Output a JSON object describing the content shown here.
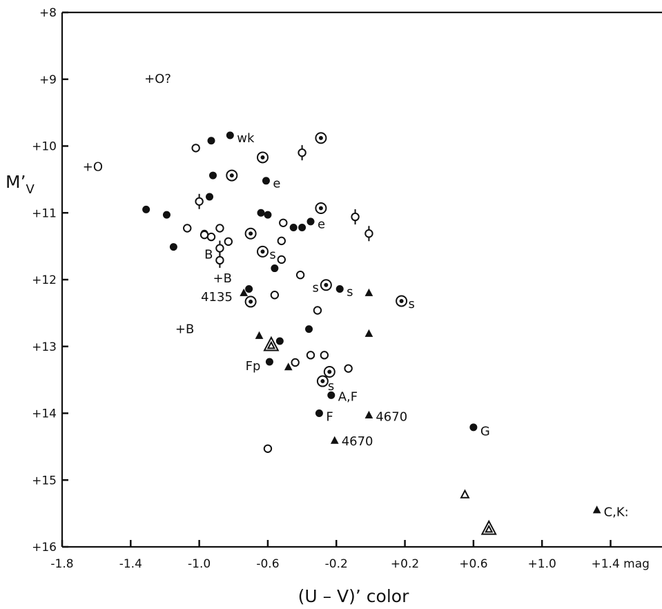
{
  "chart_data": {
    "type": "scatter",
    "title": "",
    "xlabel": "(U – V)’ color",
    "ylabel": "M’V",
    "ylabel_main": "M’",
    "ylabel_sub": "V",
    "xlim": [
      -1.8,
      1.7
    ],
    "ylim": [
      8,
      16
    ],
    "y_inverted": true,
    "grid": false,
    "x_ticks": [
      -1.8,
      -1.4,
      -1.0,
      -0.6,
      -0.2,
      0.2,
      0.6,
      1.0,
      1.4
    ],
    "x_tick_labels": [
      "-1.8",
      "-1.4",
      "-1.0",
      "-0.6",
      "-0.2",
      "+0.2",
      "+0.6",
      "+1.0",
      "+1.4 mag"
    ],
    "y_ticks": [
      8,
      9,
      10,
      11,
      12,
      13,
      14,
      15,
      16
    ],
    "y_tick_labels": [
      "+8",
      "+9",
      "+10",
      "+11",
      "+12",
      "+13",
      "+14",
      "+15",
      "+16"
    ],
    "marker_colors": {
      "ink": "#111111",
      "paper": "#ffffff"
    },
    "series": [
      {
        "marker": "filled-circle",
        "points": [
          {
            "x": -0.82,
            "y": 9.84
          },
          {
            "x": -0.93,
            "y": 9.92
          },
          {
            "x": -0.92,
            "y": 10.44
          },
          {
            "x": -0.61,
            "y": 10.52
          },
          {
            "x": -0.94,
            "y": 10.76
          },
          {
            "x": -1.31,
            "y": 10.95
          },
          {
            "x": -1.19,
            "y": 11.03
          },
          {
            "x": -0.64,
            "y": 11.0
          },
          {
            "x": -0.6,
            "y": 11.03
          },
          {
            "x": -0.35,
            "y": 11.13
          },
          {
            "x": -0.4,
            "y": 11.22
          },
          {
            "x": -0.45,
            "y": 11.22
          },
          {
            "x": -0.97,
            "y": 11.31
          },
          {
            "x": -1.15,
            "y": 11.51
          },
          {
            "x": -0.56,
            "y": 11.83
          },
          {
            "x": -0.71,
            "y": 12.14
          },
          {
            "x": -0.18,
            "y": 12.14
          },
          {
            "x": -0.36,
            "y": 12.74
          },
          {
            "x": -0.53,
            "y": 12.92
          },
          {
            "x": -0.59,
            "y": 13.23
          },
          {
            "x": -0.23,
            "y": 13.73
          },
          {
            "x": -0.3,
            "y": 14.0
          },
          {
            "x": 0.6,
            "y": 14.21
          }
        ]
      },
      {
        "marker": "open-circle",
        "points": [
          {
            "x": -1.02,
            "y": 10.03
          },
          {
            "x": -1.07,
            "y": 11.23
          },
          {
            "x": -0.97,
            "y": 11.33
          },
          {
            "x": -0.88,
            "y": 11.23
          },
          {
            "x": -0.93,
            "y": 11.36
          },
          {
            "x": -0.83,
            "y": 11.43
          },
          {
            "x": -0.51,
            "y": 11.15
          },
          {
            "x": -0.52,
            "y": 11.42
          },
          {
            "x": -0.52,
            "y": 11.7
          },
          {
            "x": -0.41,
            "y": 11.93
          },
          {
            "x": -0.56,
            "y": 12.23
          },
          {
            "x": -0.31,
            "y": 12.46
          },
          {
            "x": -0.35,
            "y": 13.13
          },
          {
            "x": -0.27,
            "y": 13.13
          },
          {
            "x": -0.44,
            "y": 13.24
          },
          {
            "x": -0.13,
            "y": 13.33
          },
          {
            "x": -0.6,
            "y": 14.53
          }
        ]
      },
      {
        "marker": "open-circle-with-bar",
        "points": [
          {
            "x": -0.4,
            "y": 10.1
          },
          {
            "x": -1.0,
            "y": 10.83
          },
          {
            "x": -0.88,
            "y": 11.53
          },
          {
            "x": -0.88,
            "y": 11.71
          },
          {
            "x": -0.09,
            "y": 11.06
          },
          {
            "x": -0.01,
            "y": 11.31
          }
        ]
      },
      {
        "marker": "dotted-circle",
        "points": [
          {
            "x": -0.29,
            "y": 9.88
          },
          {
            "x": -0.63,
            "y": 10.17
          },
          {
            "x": -0.81,
            "y": 10.44
          },
          {
            "x": -0.29,
            "y": 10.93
          },
          {
            "x": -0.7,
            "y": 11.31
          },
          {
            "x": -0.63,
            "y": 11.58
          },
          {
            "x": -0.26,
            "y": 12.08
          },
          {
            "x": -0.7,
            "y": 12.33
          },
          {
            "x": 0.18,
            "y": 12.32
          },
          {
            "x": -0.24,
            "y": 13.38
          },
          {
            "x": -0.28,
            "y": 13.52
          }
        ]
      },
      {
        "marker": "filled-triangle",
        "points": [
          {
            "x": -0.74,
            "y": 12.2
          },
          {
            "x": -0.01,
            "y": 12.2
          },
          {
            "x": -0.65,
            "y": 12.84
          },
          {
            "x": -0.01,
            "y": 12.81
          },
          {
            "x": -0.48,
            "y": 13.31
          },
          {
            "x": -0.01,
            "y": 14.03
          },
          {
            "x": -0.21,
            "y": 14.41
          },
          {
            "x": 1.32,
            "y": 15.45
          }
        ]
      },
      {
        "marker": "open-triangle",
        "points": [
          {
            "x": 0.55,
            "y": 15.22
          }
        ]
      },
      {
        "marker": "double-triangle",
        "points": [
          {
            "x": -0.58,
            "y": 12.98
          },
          {
            "x": 0.69,
            "y": 15.73
          }
        ]
      }
    ],
    "annotations": [
      {
        "text": "+O?",
        "x": -1.32,
        "y": 8.98
      },
      {
        "text": "+O",
        "x": -1.68,
        "y": 10.3
      },
      {
        "text": "wk",
        "x": -0.78,
        "y": 9.87
      },
      {
        "text": "e",
        "x": -0.57,
        "y": 10.55
      },
      {
        "text": "e",
        "x": -0.31,
        "y": 11.16
      },
      {
        "text": "B",
        "x": -0.97,
        "y": 11.61
      },
      {
        "text": "s",
        "x": -0.59,
        "y": 11.61
      },
      {
        "text": "+B",
        "x": -0.92,
        "y": 11.97
      },
      {
        "text": "s",
        "x": -0.34,
        "y": 12.11
      },
      {
        "text": "s",
        "x": -0.14,
        "y": 12.17
      },
      {
        "text": "4135",
        "x": -0.99,
        "y": 12.25
      },
      {
        "text": "s",
        "x": 0.22,
        "y": 12.35
      },
      {
        "text": "+B",
        "x": -1.14,
        "y": 12.73
      },
      {
        "text": "Fp",
        "x": -0.73,
        "y": 13.28
      },
      {
        "text": "s",
        "x": -0.25,
        "y": 13.58
      },
      {
        "text": "A,F",
        "x": -0.19,
        "y": 13.74
      },
      {
        "text": "F",
        "x": -0.26,
        "y": 14.04
      },
      {
        "text": "4670",
        "x": 0.03,
        "y": 14.04
      },
      {
        "text": "4670",
        "x": -0.17,
        "y": 14.41
      },
      {
        "text": "G",
        "x": 0.64,
        "y": 14.26
      },
      {
        "text": "C,K:",
        "x": 1.36,
        "y": 15.47
      }
    ]
  }
}
